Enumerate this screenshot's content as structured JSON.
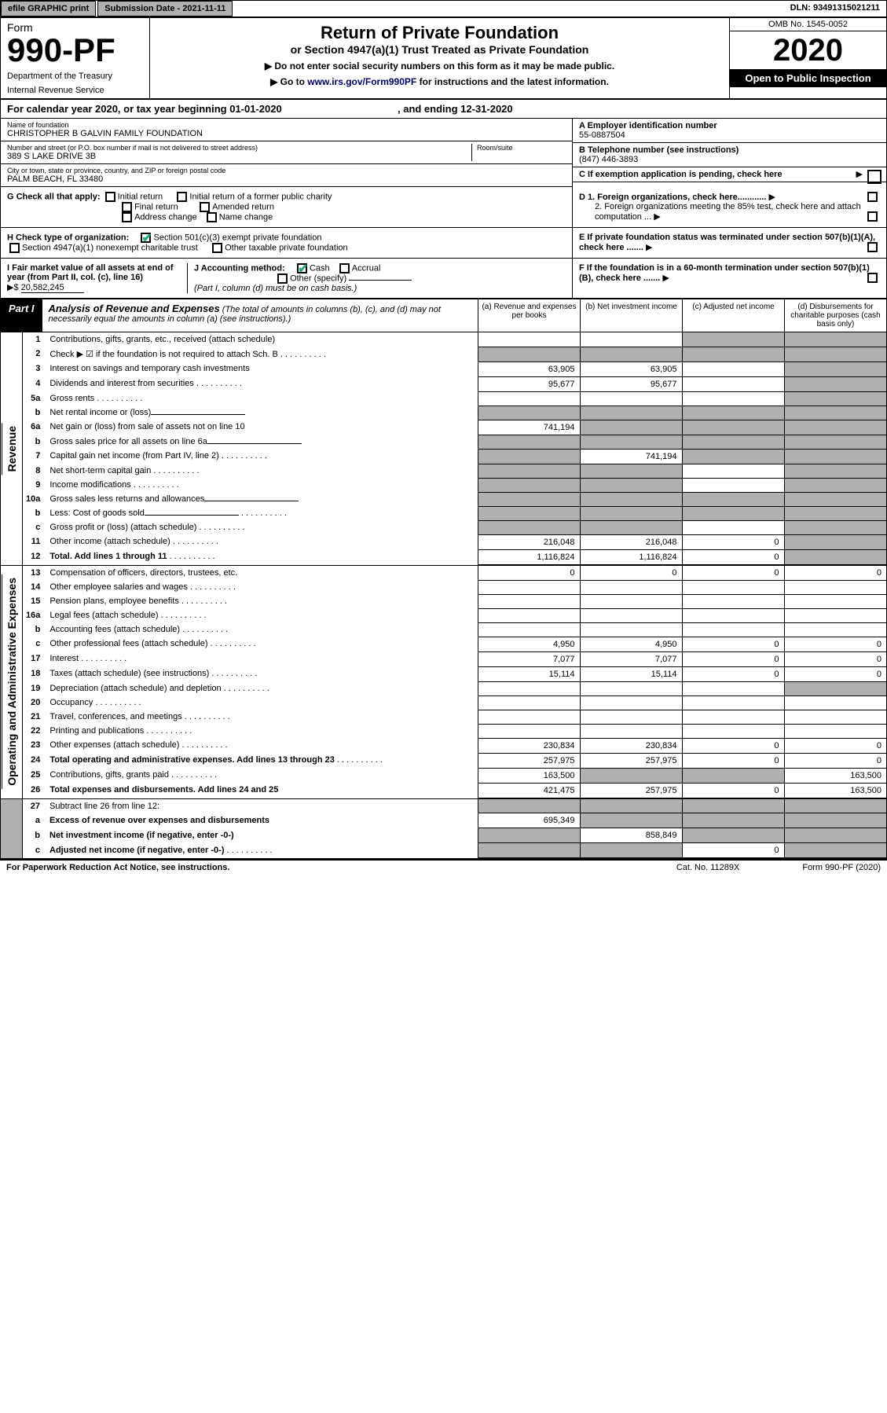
{
  "topbar": {
    "efile": "efile GRAPHIC print",
    "submission": "Submission Date - 2021-11-11",
    "dln": "DLN: 93491315021211"
  },
  "header": {
    "form_word": "Form",
    "form_no": "990-PF",
    "dept": "Department of the Treasury",
    "irs": "Internal Revenue Service",
    "title": "Return of Private Foundation",
    "subtitle": "or Section 4947(a)(1) Trust Treated as Private Foundation",
    "instr1": "▶ Do not enter social security numbers on this form as it may be made public.",
    "instr2_pre": "▶ Go to ",
    "instr2_link": "www.irs.gov/Form990PF",
    "instr2_post": " for instructions and the latest information.",
    "omb": "OMB No. 1545-0052",
    "year": "2020",
    "open": "Open to Public Inspection"
  },
  "cal": {
    "text": "For calendar year 2020, or tax year beginning 01-01-2020",
    "ending": ", and ending 12-31-2020"
  },
  "info": {
    "name_lbl": "Name of foundation",
    "name": "CHRISTOPHER B GALVIN FAMILY FOUNDATION",
    "addr_lbl": "Number and street (or P.O. box number if mail is not delivered to street address)",
    "addr": "389 S LAKE DRIVE 3B",
    "room_lbl": "Room/suite",
    "city_lbl": "City or town, state or province, country, and ZIP or foreign postal code",
    "city": "PALM BEACH, FL  33480",
    "ein_lbl": "A Employer identification number",
    "ein": "55-0887504",
    "tel_lbl": "B Telephone number (see instructions)",
    "tel": "(847) 446-3893",
    "pending": "C If exemption application is pending, check here"
  },
  "checks": {
    "g_lbl": "G Check all that apply:",
    "g_initial": "Initial return",
    "g_initial_former": "Initial return of a former public charity",
    "g_final": "Final return",
    "g_amended": "Amended return",
    "g_addr": "Address change",
    "g_name": "Name change",
    "h_lbl": "H Check type of organization:",
    "h_501": "Section 501(c)(3) exempt private foundation",
    "h_4947": "Section 4947(a)(1) nonexempt charitable trust",
    "h_other": "Other taxable private foundation",
    "i_lbl": "I Fair market value of all assets at end of year (from Part II, col. (c), line 16)",
    "i_val": "20,582,245",
    "j_lbl": "J Accounting method:",
    "j_cash": "Cash",
    "j_accrual": "Accrual",
    "j_other": "Other (specify)",
    "j_note": "(Part I, column (d) must be on cash basis.)",
    "d1": "D 1. Foreign organizations, check here............",
    "d2": "2. Foreign organizations meeting the 85% test, check here and attach computation ...",
    "e": "E  If private foundation status was terminated under section 507(b)(1)(A), check here .......",
    "f": "F  If the foundation is in a 60-month termination under section 507(b)(1)(B), check here .......",
    "arrow_dollar": "▶$ "
  },
  "part1": {
    "lbl": "Part I",
    "title": "Analysis of Revenue and Expenses",
    "sub": " (The total of amounts in columns (b), (c), and (d) may not necessarily equal the amounts in column (a) (see instructions).)",
    "col_a": "(a)  Revenue and expenses per books",
    "col_b": "(b)  Net investment income",
    "col_c": "(c)  Adjusted net income",
    "col_d": "(d)  Disbursements for charitable purposes (cash basis only)"
  },
  "side": {
    "revenue": "Revenue",
    "expenses": "Operating and Administrative Expenses"
  },
  "rows": [
    {
      "n": "1",
      "t": "Contributions, gifts, grants, etc., received (attach schedule)",
      "a": "",
      "b": "",
      "c": "s",
      "d": "s"
    },
    {
      "n": "2",
      "t": "Check ▶ ☑ if the foundation is not required to attach Sch. B",
      "a": "s",
      "b": "s",
      "c": "s",
      "d": "s",
      "dots": true,
      "nob": true
    },
    {
      "n": "3",
      "t": "Interest on savings and temporary cash investments",
      "a": "63,905",
      "b": "63,905",
      "c": "",
      "d": "s"
    },
    {
      "n": "4",
      "t": "Dividends and interest from securities",
      "a": "95,677",
      "b": "95,677",
      "c": "",
      "d": "s",
      "dots": true
    },
    {
      "n": "5a",
      "t": "Gross rents",
      "a": "",
      "b": "",
      "c": "",
      "d": "s",
      "dots": true
    },
    {
      "n": "b",
      "t": "Net rental income or (loss)",
      "a": "s",
      "b": "s",
      "c": "s",
      "d": "s",
      "sub": true
    },
    {
      "n": "6a",
      "t": "Net gain or (loss) from sale of assets not on line 10",
      "a": "741,194",
      "b": "s",
      "c": "s",
      "d": "s"
    },
    {
      "n": "b",
      "t": "Gross sales price for all assets on line 6a",
      "a": "s",
      "b": "s",
      "c": "s",
      "d": "s",
      "sub": true
    },
    {
      "n": "7",
      "t": "Capital gain net income (from Part IV, line 2)",
      "a": "s",
      "b": "741,194",
      "c": "s",
      "d": "s",
      "dots": true
    },
    {
      "n": "8",
      "t": "Net short-term capital gain",
      "a": "s",
      "b": "s",
      "c": "",
      "d": "s",
      "dots": true
    },
    {
      "n": "9",
      "t": "Income modifications",
      "a": "s",
      "b": "s",
      "c": "",
      "d": "s",
      "dots": true
    },
    {
      "n": "10a",
      "t": "Gross sales less returns and allowances",
      "a": "s",
      "b": "s",
      "c": "s",
      "d": "s",
      "sub": true
    },
    {
      "n": "b",
      "t": "Less: Cost of goods sold",
      "a": "s",
      "b": "s",
      "c": "s",
      "d": "s",
      "sub": true,
      "dots": true
    },
    {
      "n": "c",
      "t": "Gross profit or (loss) (attach schedule)",
      "a": "s",
      "b": "s",
      "c": "",
      "d": "s",
      "dots": true
    },
    {
      "n": "11",
      "t": "Other income (attach schedule)",
      "a": "216,048",
      "b": "216,048",
      "c": "0",
      "d": "s",
      "dots": true
    },
    {
      "n": "12",
      "t": "Total. Add lines 1 through 11",
      "a": "1,116,824",
      "b": "1,116,824",
      "c": "0",
      "d": "s",
      "bold": true,
      "dots": true
    }
  ],
  "exprows": [
    {
      "n": "13",
      "t": "Compensation of officers, directors, trustees, etc.",
      "a": "0",
      "b": "0",
      "c": "0",
      "d": "0"
    },
    {
      "n": "14",
      "t": "Other employee salaries and wages",
      "a": "",
      "b": "",
      "c": "",
      "d": "",
      "dots": true
    },
    {
      "n": "15",
      "t": "Pension plans, employee benefits",
      "a": "",
      "b": "",
      "c": "",
      "d": "",
      "dots": true
    },
    {
      "n": "16a",
      "t": "Legal fees (attach schedule)",
      "a": "",
      "b": "",
      "c": "",
      "d": "",
      "dots": true
    },
    {
      "n": "b",
      "t": "Accounting fees (attach schedule)",
      "a": "",
      "b": "",
      "c": "",
      "d": "",
      "dots": true
    },
    {
      "n": "c",
      "t": "Other professional fees (attach schedule)",
      "a": "4,950",
      "b": "4,950",
      "c": "0",
      "d": "0",
      "dots": true
    },
    {
      "n": "17",
      "t": "Interest",
      "a": "7,077",
      "b": "7,077",
      "c": "0",
      "d": "0",
      "dots": true
    },
    {
      "n": "18",
      "t": "Taxes (attach schedule) (see instructions)",
      "a": "15,114",
      "b": "15,114",
      "c": "0",
      "d": "0",
      "dots": true
    },
    {
      "n": "19",
      "t": "Depreciation (attach schedule) and depletion",
      "a": "",
      "b": "",
      "c": "",
      "d": "s",
      "dots": true
    },
    {
      "n": "20",
      "t": "Occupancy",
      "a": "",
      "b": "",
      "c": "",
      "d": "",
      "dots": true
    },
    {
      "n": "21",
      "t": "Travel, conferences, and meetings",
      "a": "",
      "b": "",
      "c": "",
      "d": "",
      "dots": true
    },
    {
      "n": "22",
      "t": "Printing and publications",
      "a": "",
      "b": "",
      "c": "",
      "d": "",
      "dots": true
    },
    {
      "n": "23",
      "t": "Other expenses (attach schedule)",
      "a": "230,834",
      "b": "230,834",
      "c": "0",
      "d": "0",
      "dots": true
    },
    {
      "n": "24",
      "t": "Total operating and administrative expenses. Add lines 13 through 23",
      "a": "257,975",
      "b": "257,975",
      "c": "0",
      "d": "0",
      "bold": true,
      "dots": true
    },
    {
      "n": "25",
      "t": "Contributions, gifts, grants paid",
      "a": "163,500",
      "b": "s",
      "c": "s",
      "d": "163,500",
      "dots": true
    },
    {
      "n": "26",
      "t": "Total expenses and disbursements. Add lines 24 and 25",
      "a": "421,475",
      "b": "257,975",
      "c": "0",
      "d": "163,500",
      "bold": true
    }
  ],
  "botrows": [
    {
      "n": "27",
      "t": "Subtract line 26 from line 12:",
      "a": "s",
      "b": "s",
      "c": "s",
      "d": "s"
    },
    {
      "n": "a",
      "t": "Excess of revenue over expenses and disbursements",
      "a": "695,349",
      "b": "s",
      "c": "s",
      "d": "s",
      "bold": true
    },
    {
      "n": "b",
      "t": "Net investment income (if negative, enter -0-)",
      "a": "s",
      "b": "858,849",
      "c": "s",
      "d": "s",
      "bold": true
    },
    {
      "n": "c",
      "t": "Adjusted net income (if negative, enter -0-)",
      "a": "s",
      "b": "s",
      "c": "0",
      "d": "s",
      "bold": true,
      "dots": true
    }
  ],
  "footer": {
    "left": "For Paperwork Reduction Act Notice, see instructions.",
    "mid": "Cat. No. 11289X",
    "right": "Form 990-PF (2020)"
  }
}
